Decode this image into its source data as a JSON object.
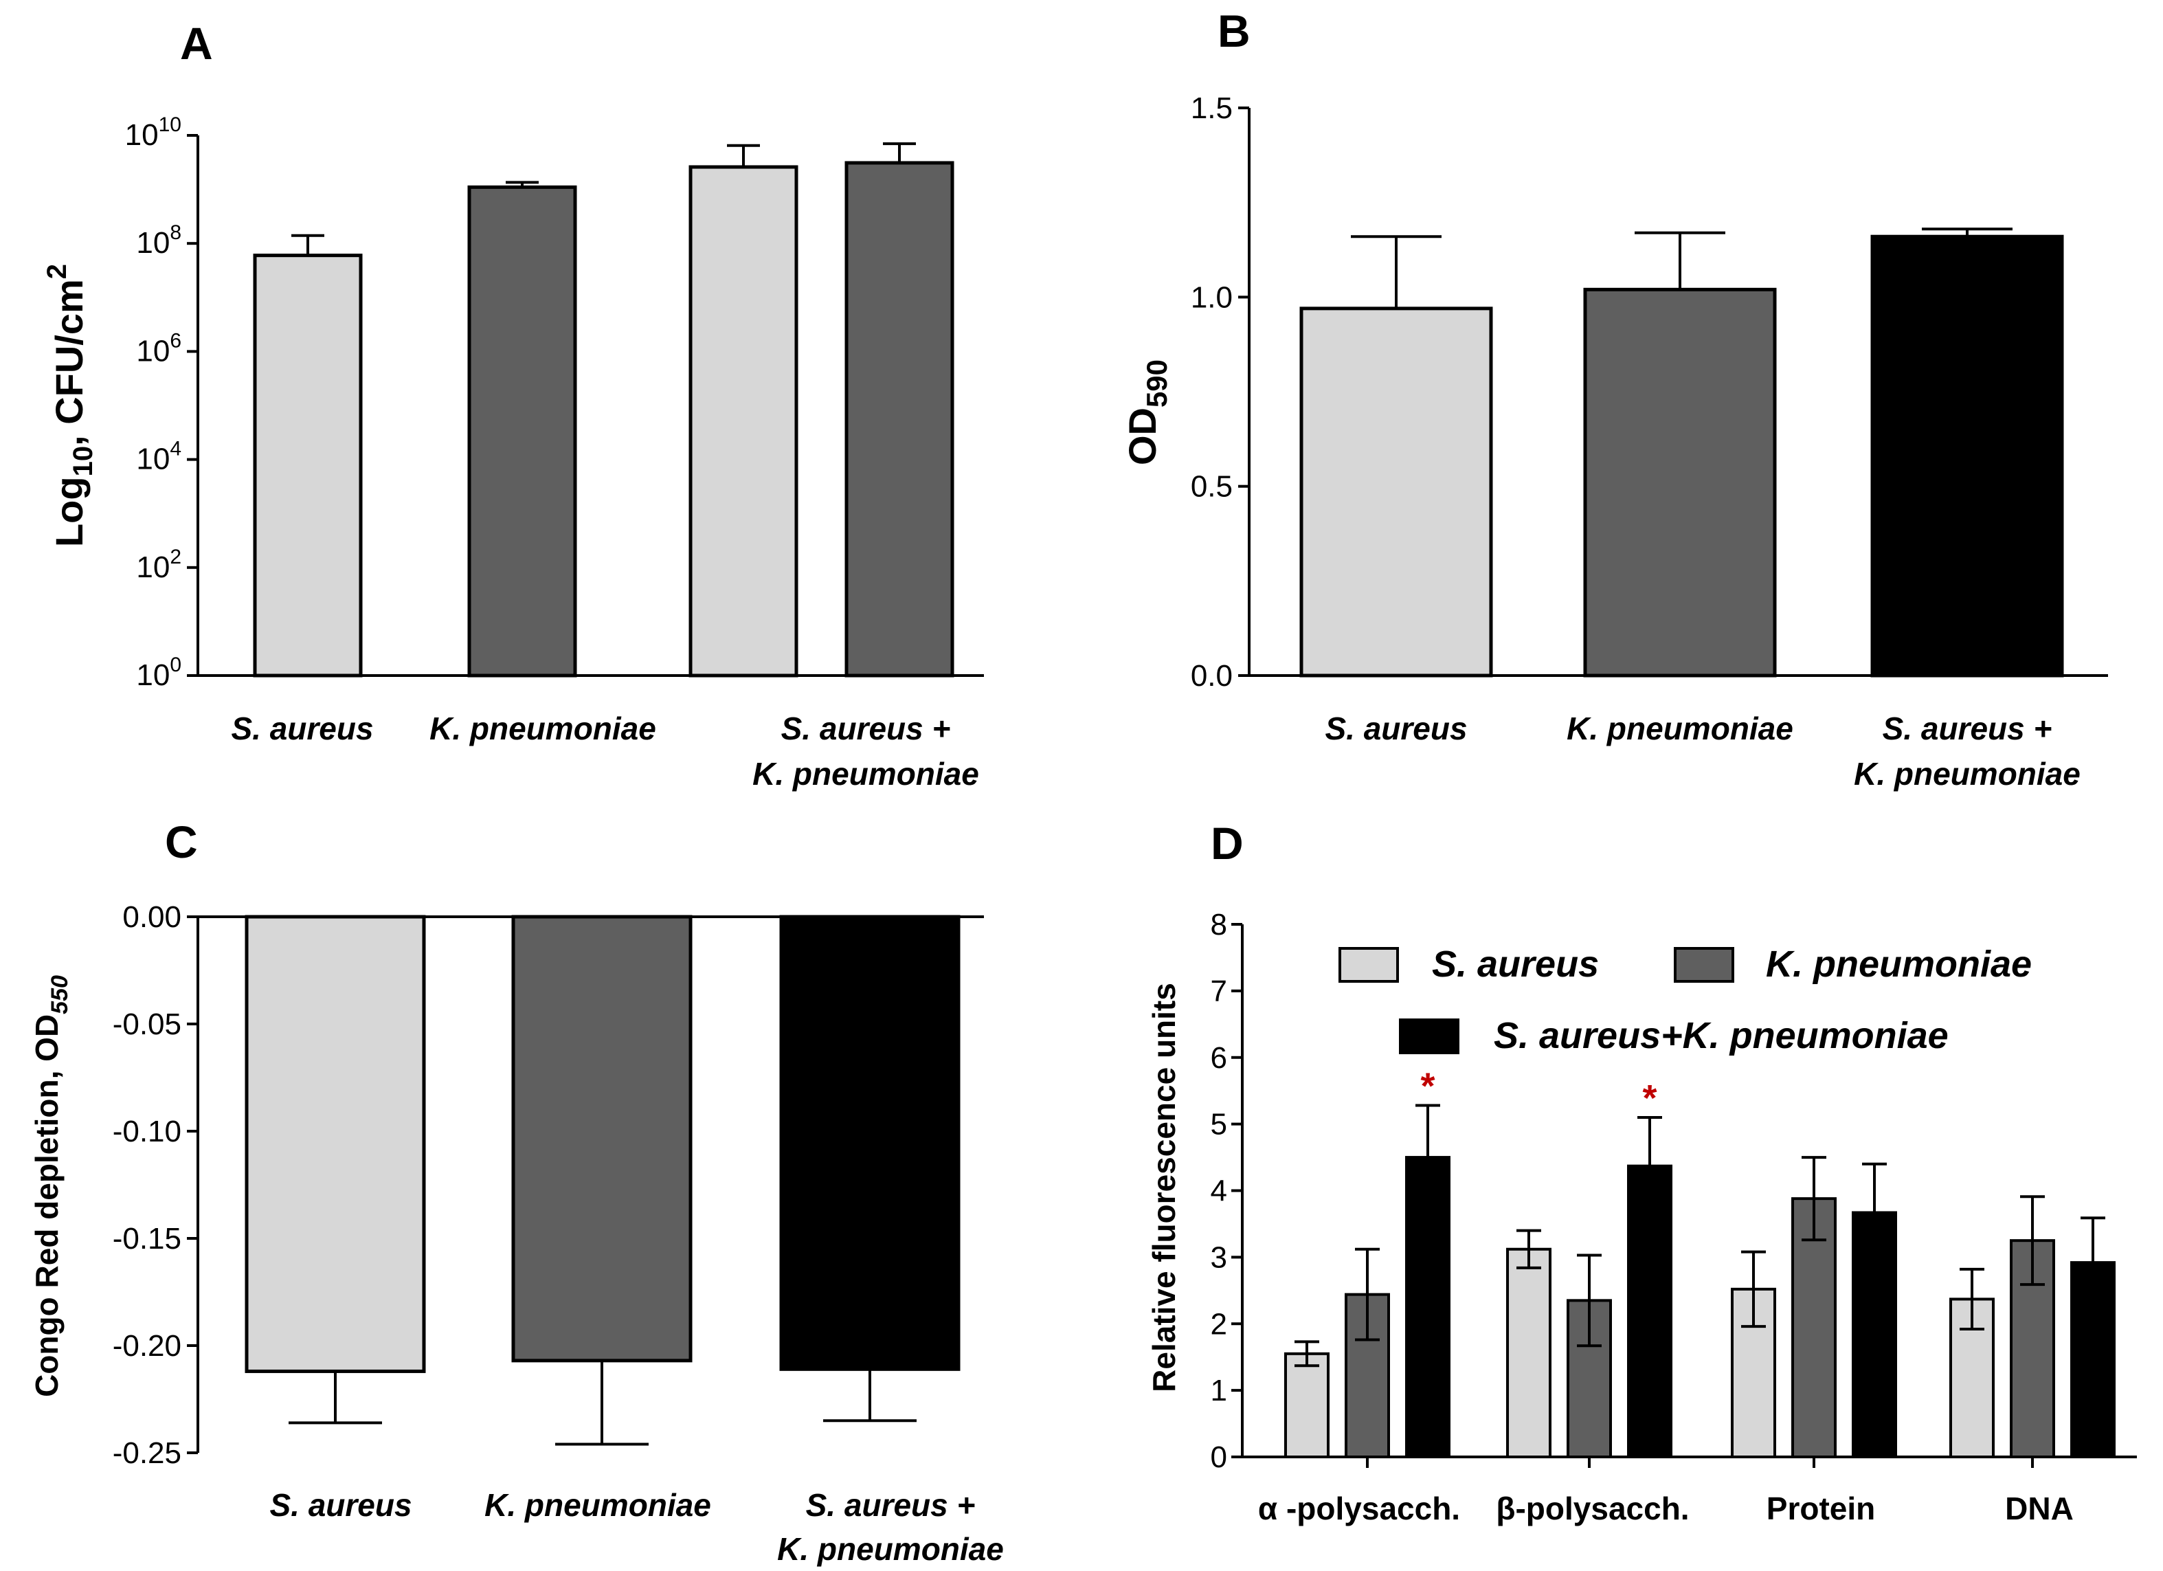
{
  "colors": {
    "light": "#d7d7d7",
    "dark": "#5f5f5f",
    "black": "#000000",
    "axis": "#000000",
    "star": "#c00000"
  },
  "chart_data": [
    {
      "panel": "A",
      "type": "bar",
      "scale": "log",
      "title": "",
      "ylabel": "Log10, CFU/cm2",
      "ylim": [
        1,
        10000000000
      ],
      "yticks": [
        {
          "base": "10",
          "exp": "0"
        },
        {
          "base": "10",
          "exp": "2"
        },
        {
          "base": "10",
          "exp": "4"
        },
        {
          "base": "10",
          "exp": "6"
        },
        {
          "base": "10",
          "exp": "8"
        },
        {
          "base": "10",
          "exp": "10"
        }
      ],
      "categories": [
        {
          "lines": [
            "S. aureus"
          ]
        },
        {
          "lines": [
            "K. pneumoniae"
          ]
        },
        {
          "lines": [
            "S. aureus +",
            "K. pneumoniae"
          ]
        }
      ],
      "bars": [
        {
          "category": "S. aureus",
          "color": "light",
          "value": 60000000,
          "error": 140000000
        },
        {
          "category": "K. pneumoniae",
          "color": "dark",
          "value": 1100000000,
          "error": 1350000000
        },
        {
          "category": "S. aureus + K. pneumoniae",
          "color": "light",
          "value": 2600000000,
          "error": 6500000000
        },
        {
          "category": "S. aureus + K. pneumoniae",
          "color": "dark",
          "value": 3100000000,
          "error": 7000000000
        }
      ]
    },
    {
      "panel": "B",
      "type": "bar",
      "title": "",
      "ylabel": "OD590",
      "ylim": [
        0,
        1.5
      ],
      "yticks": [
        "0.0",
        "0.5",
        "1.0",
        "1.5"
      ],
      "categories": [
        {
          "lines": [
            "S. aureus"
          ]
        },
        {
          "lines": [
            "K. pneumoniae"
          ]
        },
        {
          "lines": [
            "S. aureus +",
            "K. pneumoniae"
          ]
        }
      ],
      "bars": [
        {
          "category": "S. aureus",
          "color": "light",
          "value": 0.97,
          "error": 0.19
        },
        {
          "category": "K. pneumoniae",
          "color": "dark",
          "value": 1.02,
          "error": 0.15
        },
        {
          "category": "S. aureus + K. pneumoniae",
          "color": "black",
          "value": 1.16,
          "error": 0.02
        }
      ]
    },
    {
      "panel": "C",
      "type": "bar",
      "title": "",
      "ylabel": "Congo Red depletion, OD550",
      "ylim": [
        -0.25,
        0
      ],
      "yticks": [
        "0.00",
        "-0.05",
        "-0.10",
        "-0.15",
        "-0.20",
        "-0.25"
      ],
      "categories": [
        {
          "lines": [
            "S. aureus"
          ]
        },
        {
          "lines": [
            "K. pneumoniae"
          ]
        },
        {
          "lines": [
            "S. aureus +",
            "K. pneumoniae"
          ]
        }
      ],
      "bars": [
        {
          "category": "S. aureus",
          "color": "light",
          "value": -0.212,
          "error": 0.024
        },
        {
          "category": "K. pneumoniae",
          "color": "dark",
          "value": -0.207,
          "error": 0.039
        },
        {
          "category": "S. aureus + K. pneumoniae",
          "color": "black",
          "value": -0.211,
          "error": 0.024
        }
      ]
    },
    {
      "panel": "D",
      "type": "bar",
      "title": "",
      "ylabel": "Relative fluorescence units",
      "ylim": [
        0,
        8
      ],
      "yticks": [
        "0",
        "1",
        "2",
        "3",
        "4",
        "5",
        "6",
        "7",
        "8"
      ],
      "categories": [
        {
          "lines": [
            "α -polysacch."
          ]
        },
        {
          "lines": [
            "β-polysacch."
          ]
        },
        {
          "lines": [
            "Protein"
          ]
        },
        {
          "lines": [
            "DNA"
          ]
        }
      ],
      "series": [
        {
          "name": "S. aureus",
          "color": "light",
          "values": [
            1.55,
            3.12,
            2.52,
            2.37
          ],
          "errors": [
            0.18,
            0.28,
            0.56,
            0.45
          ]
        },
        {
          "name": "K. pneumoniae",
          "color": "dark",
          "values": [
            2.44,
            2.35,
            3.88,
            3.25
          ],
          "errors": [
            0.68,
            0.68,
            0.62,
            0.66
          ]
        },
        {
          "name": "S. aureus+K. pneumoniae",
          "color": "black",
          "values": [
            4.5,
            4.37,
            3.67,
            2.92
          ],
          "errors": [
            0.78,
            0.73,
            0.73,
            0.67
          ]
        }
      ],
      "significance": [
        {
          "category": "α -polysacch.",
          "series": "S. aureus+K. pneumoniae",
          "label": "*"
        },
        {
          "category": "β-polysacch.",
          "series": "S. aureus+K. pneumoniae",
          "label": "*"
        }
      ],
      "legend": [
        "S. aureus",
        "K. pneumoniae",
        "S. aureus+K. pneumoniae"
      ]
    }
  ],
  "panel_letters": [
    "A",
    "B",
    "C",
    "D"
  ]
}
